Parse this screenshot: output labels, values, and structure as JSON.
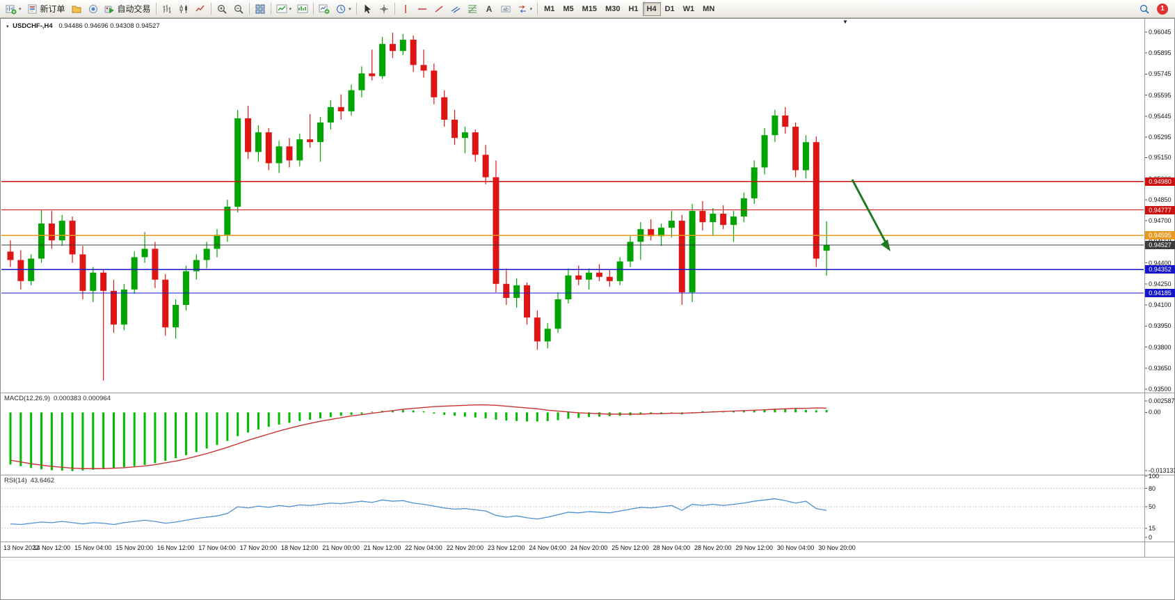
{
  "app": {
    "toolbar": {
      "new_order_label": "新订单",
      "autotrade_label": "自动交易",
      "timeframes": [
        "M1",
        "M5",
        "M15",
        "M30",
        "H1",
        "H4",
        "D1",
        "W1",
        "MN"
      ],
      "active_timeframe": "H4",
      "notification_count": "1",
      "icons": [
        "new-chart-icon",
        "new-order-icon",
        "profiles-icon",
        "data-window-icon",
        "autotrade-icon",
        "bar-chart-icon",
        "candlestick-icon",
        "line-chart-icon",
        "zoom-in-icon",
        "zoom-out-icon",
        "tile-windows-icon",
        "indicators-icon",
        "objects-icon",
        "template-icon",
        "periods-icon",
        "cursor-icon",
        "crosshair-icon",
        "vertical-line-icon",
        "horizontal-line-icon",
        "trendline-icon",
        "channel-icon",
        "fibonacci-icon",
        "text-icon",
        "label-icon",
        "arrows-icon",
        "search-icon"
      ]
    }
  },
  "chart": {
    "symbol_period": "USDCHF-,H4",
    "ohlc_text": "0.94486 0.94696 0.94308 0.94527",
    "shift_marker": "▼"
  },
  "chart_data": {
    "type": "candlestick",
    "title": "USDCHF-,H4",
    "up_color": "#00A400",
    "down_color": "#DE1515",
    "price_axis_ticks": [
      "0.96045",
      "0.95895",
      "0.95745",
      "0.95595",
      "0.95445",
      "0.95295",
      "0.95150",
      "0.95000",
      "0.94850",
      "0.94700",
      "0.94550",
      "0.94400",
      "0.94250",
      "0.94100",
      "0.93950",
      "0.93800",
      "0.93650",
      "0.93500"
    ],
    "hlines": [
      {
        "price": 0.9498,
        "label": "0.94980",
        "color": "#CC1111"
      },
      {
        "price": 0.94777,
        "label": "0.94777",
        "color": "#CC1111"
      },
      {
        "price": 0.94595,
        "label": "0.94595",
        "color": "#E89A1E"
      },
      {
        "price": 0.94527,
        "label": "0.94527",
        "color": "#3C3C3C"
      },
      {
        "price": 0.94352,
        "label": "0.94352",
        "color": "#1515CC"
      },
      {
        "price": 0.94185,
        "label": "0.94185",
        "color": "#1515CC"
      }
    ],
    "arrow": {
      "color": "#1E7A1E"
    },
    "candles": [
      [
        0.9448,
        0.9456,
        0.9437,
        0.9442
      ],
      [
        0.9442,
        0.9449,
        0.9421,
        0.9427
      ],
      [
        0.9427,
        0.9446,
        0.9424,
        0.9443
      ],
      [
        0.9443,
        0.9478,
        0.944,
        0.9468
      ],
      [
        0.9468,
        0.9477,
        0.945,
        0.9456
      ],
      [
        0.9456,
        0.9474,
        0.9452,
        0.947
      ],
      [
        0.947,
        0.9473,
        0.944,
        0.9446
      ],
      [
        0.9446,
        0.9452,
        0.9414,
        0.942
      ],
      [
        0.942,
        0.9437,
        0.9412,
        0.9433
      ],
      [
        0.9433,
        0.9435,
        0.9356,
        0.942
      ],
      [
        0.942,
        0.9428,
        0.939,
        0.9396
      ],
      [
        0.9396,
        0.9425,
        0.9392,
        0.9421
      ],
      [
        0.9421,
        0.9448,
        0.9418,
        0.9444
      ],
      [
        0.9444,
        0.9462,
        0.944,
        0.945
      ],
      [
        0.945,
        0.9455,
        0.9422,
        0.9428
      ],
      [
        0.9428,
        0.9432,
        0.9388,
        0.9394
      ],
      [
        0.9394,
        0.9414,
        0.9386,
        0.941
      ],
      [
        0.941,
        0.9438,
        0.9406,
        0.9434
      ],
      [
        0.9434,
        0.9446,
        0.9428,
        0.9442
      ],
      [
        0.9442,
        0.9455,
        0.9436,
        0.945
      ],
      [
        0.945,
        0.9464,
        0.9444,
        0.946
      ],
      [
        0.946,
        0.9485,
        0.9455,
        0.948
      ],
      [
        0.948,
        0.9549,
        0.9476,
        0.9543
      ],
      [
        0.9543,
        0.9552,
        0.9514,
        0.9519
      ],
      [
        0.9519,
        0.9538,
        0.9512,
        0.9533
      ],
      [
        0.9533,
        0.9536,
        0.9506,
        0.9511
      ],
      [
        0.9511,
        0.9527,
        0.9504,
        0.9523
      ],
      [
        0.9523,
        0.9529,
        0.9508,
        0.9513
      ],
      [
        0.9513,
        0.9532,
        0.9509,
        0.9528
      ],
      [
        0.9528,
        0.9546,
        0.9522,
        0.9526
      ],
      [
        0.9526,
        0.9544,
        0.9512,
        0.954
      ],
      [
        0.954,
        0.9556,
        0.9535,
        0.9551
      ],
      [
        0.9551,
        0.956,
        0.9542,
        0.9548
      ],
      [
        0.9548,
        0.9567,
        0.9545,
        0.9563
      ],
      [
        0.9563,
        0.958,
        0.9558,
        0.9575
      ],
      [
        0.9575,
        0.9592,
        0.957,
        0.9573
      ],
      [
        0.9573,
        0.9601,
        0.9571,
        0.9596
      ],
      [
        0.9596,
        0.9604,
        0.9586,
        0.9591
      ],
      [
        0.9591,
        0.9603,
        0.9588,
        0.9599
      ],
      [
        0.9599,
        0.9602,
        0.9576,
        0.9581
      ],
      [
        0.9581,
        0.9592,
        0.9572,
        0.9577
      ],
      [
        0.9577,
        0.9582,
        0.9553,
        0.9558
      ],
      [
        0.9558,
        0.9563,
        0.9537,
        0.9542
      ],
      [
        0.9542,
        0.9549,
        0.9524,
        0.9529
      ],
      [
        0.9529,
        0.9537,
        0.9518,
        0.9533
      ],
      [
        0.9533,
        0.9535,
        0.9512,
        0.9517
      ],
      [
        0.9517,
        0.9524,
        0.9496,
        0.9501
      ],
      [
        0.9501,
        0.9513,
        0.9419,
        0.9425
      ],
      [
        0.9425,
        0.9436,
        0.941,
        0.9415
      ],
      [
        0.9415,
        0.9429,
        0.9408,
        0.9424
      ],
      [
        0.9424,
        0.9426,
        0.9396,
        0.9401
      ],
      [
        0.9401,
        0.9406,
        0.9378,
        0.9384
      ],
      [
        0.9384,
        0.9397,
        0.9379,
        0.9393
      ],
      [
        0.9393,
        0.9419,
        0.939,
        0.9414
      ],
      [
        0.9414,
        0.9436,
        0.9411,
        0.9431
      ],
      [
        0.9431,
        0.9438,
        0.9424,
        0.9428
      ],
      [
        0.9428,
        0.9436,
        0.9421,
        0.9433
      ],
      [
        0.9433,
        0.9439,
        0.9427,
        0.943
      ],
      [
        0.943,
        0.9435,
        0.9423,
        0.9427
      ],
      [
        0.9427,
        0.9444,
        0.9424,
        0.9441
      ],
      [
        0.9441,
        0.9459,
        0.9437,
        0.9455
      ],
      [
        0.9455,
        0.9469,
        0.9442,
        0.9464
      ],
      [
        0.9464,
        0.9471,
        0.9456,
        0.9459
      ],
      [
        0.9459,
        0.9468,
        0.9452,
        0.9465
      ],
      [
        0.9465,
        0.9477,
        0.9458,
        0.947
      ],
      [
        0.947,
        0.9474,
        0.941,
        0.9419
      ],
      [
        0.9419,
        0.9482,
        0.9412,
        0.9477
      ],
      [
        0.9477,
        0.9484,
        0.9463,
        0.9469
      ],
      [
        0.9469,
        0.9479,
        0.9459,
        0.9475
      ],
      [
        0.9475,
        0.9481,
        0.9464,
        0.9467
      ],
      [
        0.9467,
        0.9477,
        0.9455,
        0.9473
      ],
      [
        0.9473,
        0.949,
        0.9469,
        0.9486
      ],
      [
        0.9486,
        0.9513,
        0.9482,
        0.9508
      ],
      [
        0.9508,
        0.9536,
        0.9503,
        0.9531
      ],
      [
        0.9531,
        0.9549,
        0.9526,
        0.9545
      ],
      [
        0.9545,
        0.9551,
        0.9532,
        0.9537
      ],
      [
        0.9537,
        0.954,
        0.9501,
        0.9506
      ],
      [
        0.9506,
        0.9531,
        0.95,
        0.9526
      ],
      [
        0.9526,
        0.953,
        0.9437,
        0.9443
      ],
      [
        0.94486,
        0.94696,
        0.94308,
        0.94527
      ]
    ],
    "macd": {
      "label": "MACD(12,26,9)",
      "values_text": "0.000383 0.000964",
      "axis_labels": [
        "0.002587",
        "0.00",
        "-0.013133"
      ],
      "axis_values": [
        0.002587,
        0,
        -0.013133
      ],
      "hist_color": "#00BB00",
      "signal_color": "#C83232",
      "hist": [
        -0.0116,
        -0.012,
        -0.0124,
        -0.0127,
        -0.0129,
        -0.013,
        -0.0131,
        -0.013,
        -0.0128,
        -0.0126,
        -0.0124,
        -0.0122,
        -0.012,
        -0.0117,
        -0.0113,
        -0.0108,
        -0.0102,
        -0.0095,
        -0.0088,
        -0.008,
        -0.0072,
        -0.0063,
        -0.0052,
        -0.0044,
        -0.0037,
        -0.0031,
        -0.0026,
        -0.0022,
        -0.0018,
        -0.0015,
        -0.0012,
        -0.0009,
        -0.0006,
        -0.0004,
        -0.0002,
        0.0,
        0.0002,
        0.0003,
        0.0004,
        0.0003,
        0.0001,
        -0.0001,
        -0.0004,
        -0.0006,
        -0.0008,
        -0.001,
        -0.0012,
        -0.0015,
        -0.0017,
        -0.0018,
        -0.0019,
        -0.0019,
        -0.0018,
        -0.0016,
        -0.0013,
        -0.0011,
        -0.0009,
        -0.0008,
        -0.0007,
        -0.0006,
        -0.0005,
        -0.0003,
        -0.0002,
        -0.0001,
        -0.0001,
        -0.0003,
        -0.0001,
        0.0001,
        0.0001,
        0.0001,
        0.0001,
        0.0002,
        0.0003,
        0.0005,
        0.0006,
        0.0007,
        0.0006,
        0.0004,
        0.0003,
        0.000383
      ],
      "signal": [
        -0.0108,
        -0.0112,
        -0.0116,
        -0.0119,
        -0.0122,
        -0.0124,
        -0.0126,
        -0.0127,
        -0.0127,
        -0.0127,
        -0.0126,
        -0.0125,
        -0.0123,
        -0.0121,
        -0.0118,
        -0.0114,
        -0.011,
        -0.0105,
        -0.0099,
        -0.0093,
        -0.0086,
        -0.0079,
        -0.0071,
        -0.0063,
        -0.0056,
        -0.0049,
        -0.0042,
        -0.0036,
        -0.003,
        -0.0025,
        -0.002,
        -0.0016,
        -0.0012,
        -0.0008,
        -0.0005,
        -0.0002,
        0.0001,
        0.0004,
        0.0007,
        0.0009,
        0.0011,
        0.0013,
        0.0014,
        0.0015,
        0.0016,
        0.0017,
        0.0017,
        0.0016,
        0.0014,
        0.0012,
        0.001,
        0.0008,
        0.0005,
        0.0003,
        0.0001,
        -0.0001,
        -0.0002,
        -0.0003,
        -0.0004,
        -0.0004,
        -0.0004,
        -0.0004,
        -0.0003,
        -0.0003,
        -0.0002,
        -0.0002,
        -0.0001,
        0.0,
        0.0001,
        0.0002,
        0.0003,
        0.0004,
        0.0005,
        0.0006,
        0.0007,
        0.0008,
        0.0009,
        0.0009,
        0.001,
        0.000964
      ]
    },
    "rsi": {
      "label": "RSI(14)",
      "value_text": "43.6462",
      "axis_labels": [
        "100",
        "80",
        "50",
        "15",
        "0"
      ],
      "axis_values": [
        100,
        80,
        50,
        15,
        0
      ],
      "levels": [
        80,
        50,
        15
      ],
      "color": "#4A90D2",
      "values": [
        22,
        21,
        23,
        25,
        24,
        26,
        24,
        22,
        24,
        23,
        21,
        24,
        26,
        28,
        26,
        23,
        25,
        28,
        31,
        33,
        35,
        39,
        50,
        48,
        51,
        49,
        52,
        50,
        53,
        52,
        54,
        56,
        55,
        57,
        59,
        57,
        61,
        59,
        60,
        56,
        54,
        51,
        48,
        46,
        47,
        45,
        43,
        36,
        33,
        35,
        32,
        30,
        33,
        37,
        41,
        40,
        42,
        41,
        40,
        43,
        46,
        49,
        48,
        50,
        52,
        44,
        54,
        52,
        54,
        52,
        54,
        56,
        59,
        61,
        63,
        60,
        56,
        59,
        47,
        44
      ]
    },
    "time_labels": [
      "13 Nov 2022",
      "14 Nov 12:00",
      "15 Nov 04:00",
      "15 Nov 20:00",
      "16 Nov 12:00",
      "17 Nov 04:00",
      "17 Nov 20:00",
      "18 Nov 12:00",
      "21 Nov 00:00",
      "21 Nov 12:00",
      "22 Nov 04:00",
      "22 Nov 20:00",
      "23 Nov 12:00",
      "24 Nov 04:00",
      "24 Nov 20:00",
      "25 Nov 12:00",
      "28 Nov 04:00",
      "28 Nov 20:00",
      "29 Nov 12:00",
      "30 Nov 04:00",
      "30 Nov 20:00"
    ]
  }
}
